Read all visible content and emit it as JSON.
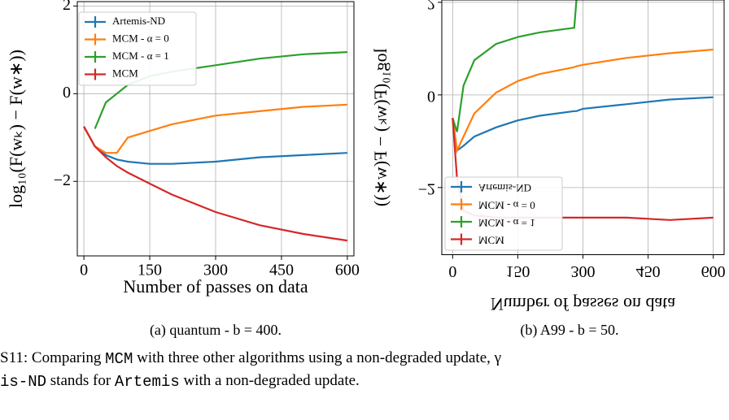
{
  "chart_data": [
    {
      "type": "line",
      "xlabel": "Number of passes on data",
      "ylabel": "log₁₀(F(wₖ) − F(w∗))",
      "caption": "(a) quantum - b = 400.",
      "x": [
        0,
        25,
        50,
        75,
        100,
        150,
        200,
        300,
        400,
        500,
        600
      ],
      "series": [
        {
          "name": "Artemis-ND",
          "color": "#1f77b4",
          "values": [
            -0.75,
            -1.2,
            -1.4,
            -1.5,
            -1.55,
            -1.6,
            -1.6,
            -1.55,
            -1.45,
            -1.4,
            -1.35
          ]
        },
        {
          "name": "MCM - α = 0",
          "color": "#ff7f0e",
          "values": [
            -0.75,
            -1.2,
            -1.35,
            -1.35,
            -1.0,
            -0.85,
            -0.7,
            -0.5,
            -0.4,
            -0.3,
            -0.25
          ]
        },
        {
          "name": "MCM - α = 1",
          "color": "#2ca02c",
          "values": [
            null,
            -0.8,
            -0.2,
            0.0,
            0.2,
            0.4,
            0.5,
            0.65,
            0.8,
            0.9,
            0.95
          ]
        },
        {
          "name": "MCM",
          "color": "#d62728",
          "values": [
            -0.75,
            -1.2,
            -1.45,
            -1.65,
            -1.8,
            -2.05,
            -2.3,
            -2.7,
            -3.0,
            -3.2,
            -3.35
          ]
        }
      ],
      "xlim": [
        -15,
        615
      ],
      "ylim": [
        -3.7,
        2.1
      ],
      "xticks": [
        0,
        150,
        300,
        450,
        600
      ],
      "yticks": [
        {
          "value": -2,
          "label": "−2"
        },
        0,
        2
      ],
      "grid": true,
      "legend": "upper left",
      "flipped_text": false
    },
    {
      "type": "line",
      "xlabel": "Number of passes on data",
      "ylabel": "log₁₀(F(wₖ) − F(w∗))",
      "caption": "(b) A99 - b = 50.",
      "x": [
        0,
        10,
        25,
        50,
        100,
        150,
        200,
        280,
        285,
        300,
        400,
        500,
        600
      ],
      "series": [
        {
          "name": "Artemis-ND",
          "color": "#1f77b4",
          "values": [
            -0.5,
            -1.2,
            -1.1,
            -0.9,
            -0.7,
            -0.55,
            -0.45,
            -0.35,
            -0.35,
            -0.3,
            -0.2,
            -0.1,
            -0.05
          ]
        },
        {
          "name": "MCM - α = 0",
          "color": "#ff7f0e",
          "values": [
            -0.5,
            -1.2,
            -0.9,
            -0.4,
            0.05,
            0.3,
            0.45,
            0.6,
            0.62,
            0.65,
            0.8,
            0.9,
            0.98
          ]
        },
        {
          "name": "MCM - α = 1",
          "color": "#2ca02c",
          "values": [
            -0.5,
            -0.8,
            0.2,
            0.75,
            1.1,
            1.25,
            1.35,
            1.45,
            2.05,
            null,
            null,
            null,
            null
          ]
        },
        {
          "name": "MCM",
          "color": "#d62728",
          "values": [
            -0.5,
            -1.8,
            -2.5,
            -2.6,
            -2.65,
            -2.65,
            -2.65,
            -2.65,
            -2.65,
            -2.65,
            -2.65,
            -2.7,
            -2.65
          ]
        }
      ],
      "xlim": [
        -25,
        625
      ],
      "ylim": [
        -3.45,
        2.05
      ],
      "xticks": [
        0,
        150,
        300,
        450,
        600
      ],
      "yticks": [
        {
          "value": -2,
          "label": "−2"
        },
        0,
        2
      ],
      "grid": true,
      "legend": "lower left",
      "flipped_text": true
    }
  ],
  "figure_caption": {
    "lines": [
      [
        "S11: Comparing ",
        "MCM",
        " with three other algorithms using a non-degraded update, γ"
      ],
      [
        "is-ND",
        " stands for ",
        "Artemis",
        " with a non-degraded update."
      ]
    ]
  }
}
